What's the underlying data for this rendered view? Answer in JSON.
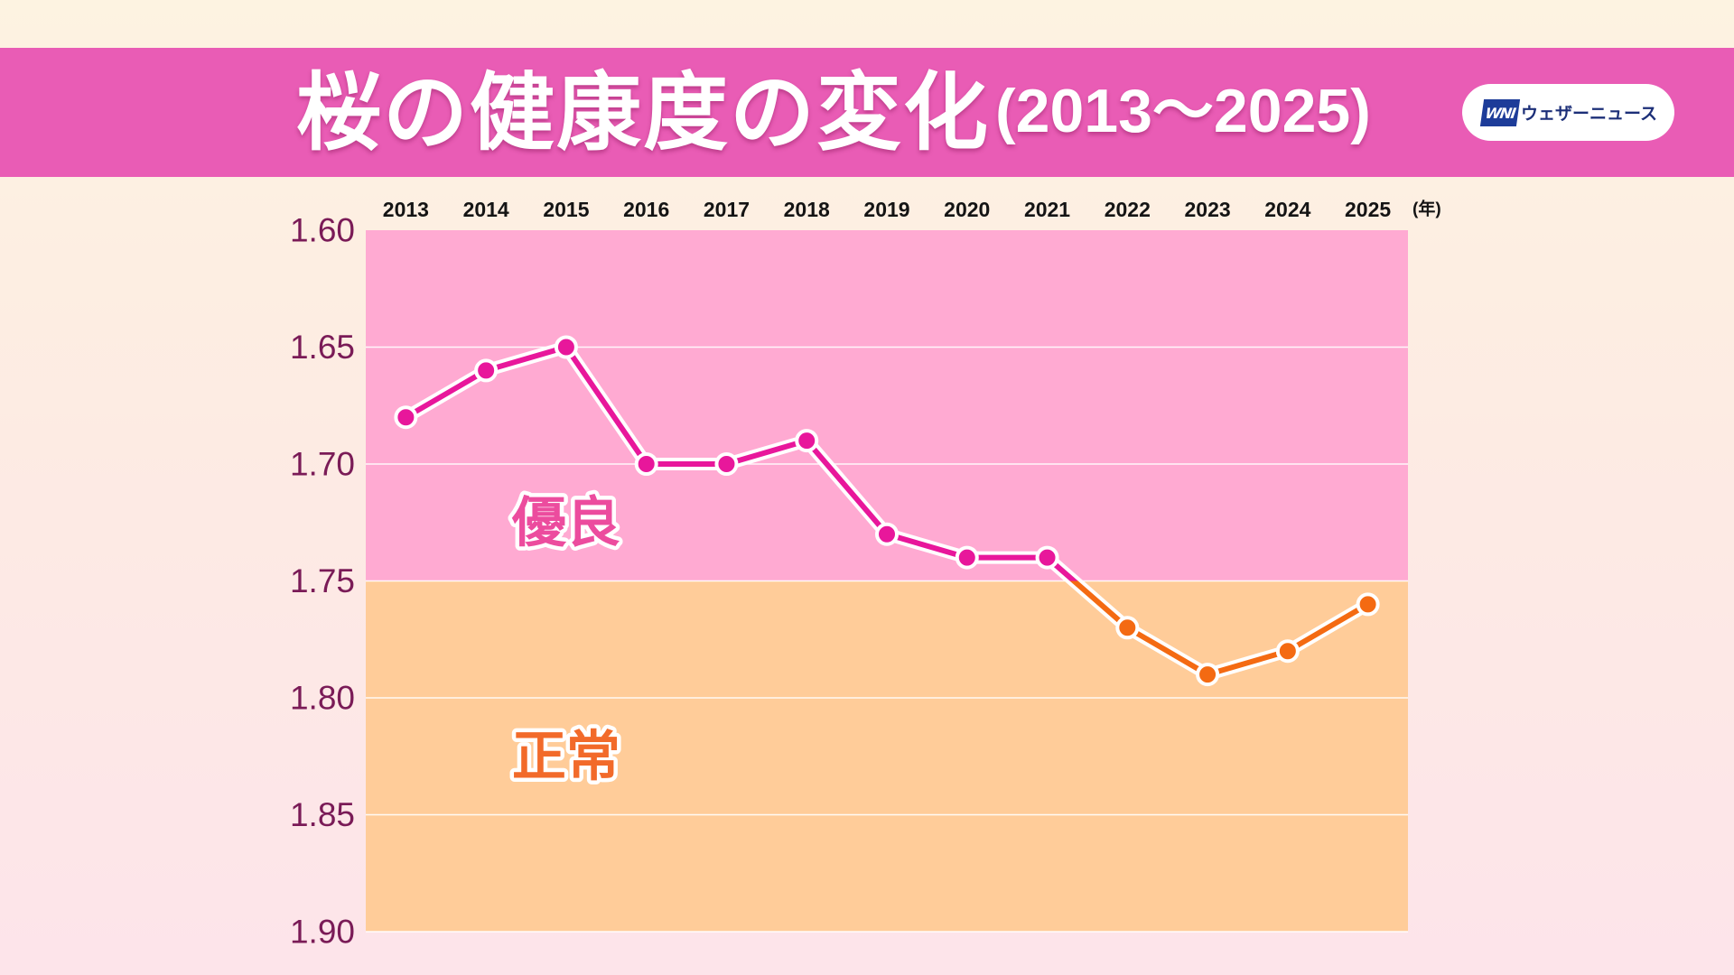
{
  "title": {
    "main": "桜の健康度の変化",
    "range": "(2013〜2025)"
  },
  "logo": {
    "mark": "WNI",
    "name": "ウェザーニュース",
    "mark_color": "#1d3c99",
    "text_color": "#1c2f78"
  },
  "colors": {
    "title_bar": "#e95cb5",
    "title_text": "#ffffff",
    "axis_text": "#7a1b57",
    "x_label_text": "#141414",
    "gridline": "#ffffff"
  },
  "chart_data": {
    "type": "line",
    "x": [
      "2013",
      "2014",
      "2015",
      "2016",
      "2017",
      "2018",
      "2019",
      "2020",
      "2021",
      "2022",
      "2023",
      "2024",
      "2025"
    ],
    "x_unit": "(年)",
    "x_axis_position": "top",
    "series": [
      {
        "values": [
          1.68,
          1.66,
          1.65,
          1.7,
          1.7,
          1.69,
          1.73,
          1.74,
          1.74,
          1.77,
          1.79,
          1.78,
          1.76
        ]
      }
    ],
    "y_ticks": [
      "1.60",
      "1.65",
      "1.70",
      "1.75",
      "1.80",
      "1.85",
      "1.90"
    ],
    "ylim": [
      1.6,
      1.9
    ],
    "y_inverted": true,
    "grid": true,
    "bands": [
      {
        "label": "優良",
        "from": 1.6,
        "to": 1.75,
        "fill": "#ffaad2",
        "label_color": "#ec4c9e",
        "line_color": "#e8179b"
      },
      {
        "label": "正常",
        "from": 1.75,
        "to": 1.9,
        "fill": "#ffcc99",
        "label_color": "#f26a2a",
        "line_color": "#f46a12"
      }
    ]
  }
}
